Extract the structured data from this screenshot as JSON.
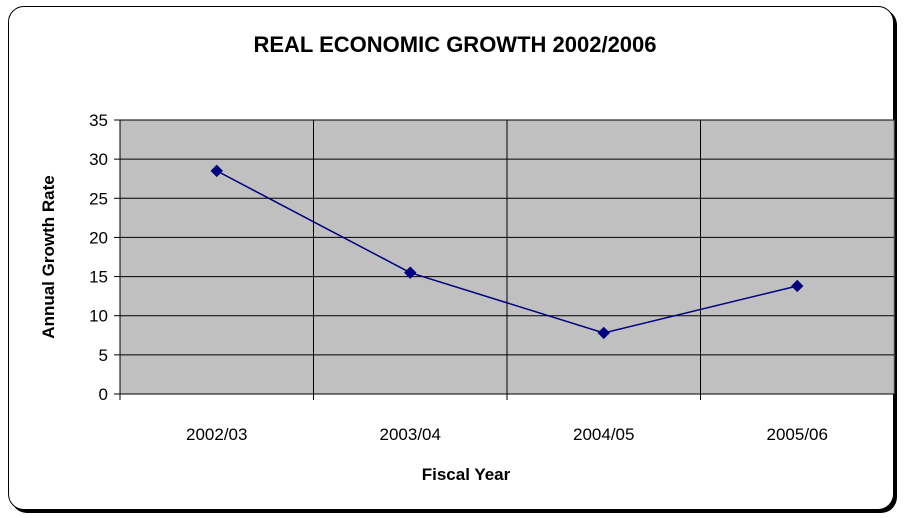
{
  "chart_data": {
    "type": "line",
    "title": "REAL ECONOMIC GROWTH 2002/2006",
    "xlabel": "Fiscal Year",
    "ylabel": "Annual Growth Rate",
    "categories": [
      "2002/03",
      "2003/04",
      "2004/05",
      "2005/06"
    ],
    "series": [
      {
        "values": [
          28.5,
          15.5,
          7.8,
          13.8
        ]
      }
    ],
    "ylim": [
      0,
      35
    ],
    "yticks": [
      0,
      5,
      10,
      15,
      20,
      25,
      30,
      35
    ],
    "grid": true,
    "legend": "none",
    "colors": {
      "line": "#000080",
      "plot_bg": "#c0c0c0"
    }
  }
}
